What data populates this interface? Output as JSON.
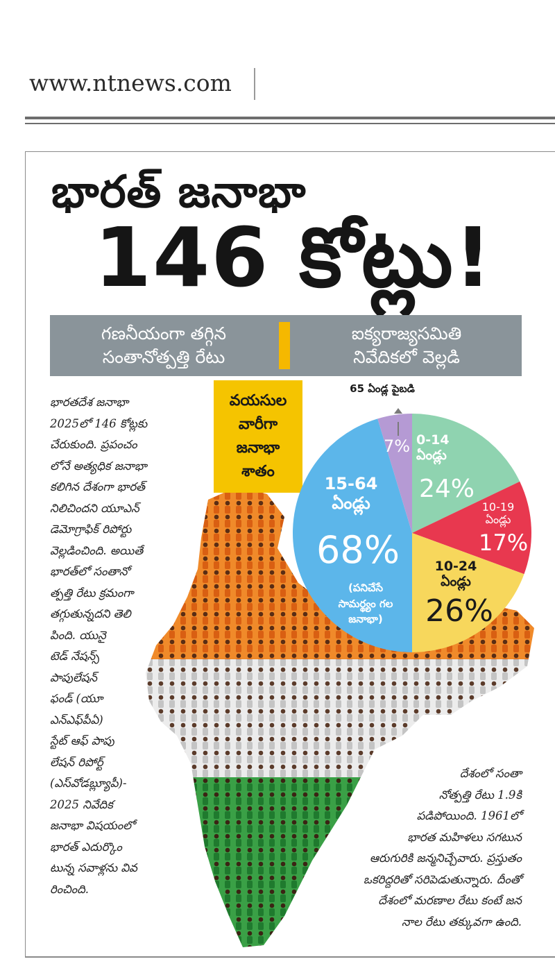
{
  "site": {
    "url": "www.ntnews.com"
  },
  "headline": {
    "line1": "భారత్ జనాభా",
    "line2": "146 కోట్లు!"
  },
  "band": {
    "left": [
      "గణనీయంగా తగ్గిన",
      "సంతానోత్పత్తి రేటు"
    ],
    "right": [
      "ఐక్యరాజ్యసమితి",
      "నివేదికలో వెల్లడి"
    ]
  },
  "lead_text": [
    "భారతదేశ జనాభా",
    "2025లో 146 కోట్లకు",
    "చేరుకుంది. ప్రపంచం",
    "లోనే అత్యధిక జనాభా",
    "కలిగిన దేశంగా భారత్",
    "నిలిచిందని యూఎన్",
    "డెమోగ్రాఫిక్ రిపోర్టు",
    "వెల్లడించింది. అయితే",
    "భారత్‌లో సంతానో",
    "త్పత్తి రేటు క్రమంగా",
    "తగ్గుతున్నదని తెలి",
    "పింది. యునై",
    "టెడ్ నేషన్స్",
    "పాపులేషన్",
    "ఫండ్ (యూ",
    "ఎన్ఎఫ్‌పీఏ)",
    "స్టేట్ ఆఫ్ పాపు",
    "లేషన్ రిపోర్ట్",
    "(ఎస్‌వోడబ్ల్యూపీ)-",
    "2025 నివేదిక",
    "జనాభా విషయంలో",
    "భారత్ ఎదుర్కొం",
    "టున్న సవాళ్లను వివ",
    "రించింది."
  ],
  "age_box": [
    "వయసుల",
    "వారీగా",
    "జనాభా",
    "శాతం"
  ],
  "chart_data": {
    "type": "pie",
    "title": "వయసుల వారీగా జనాభా శాతం",
    "slices": [
      {
        "label": "0-14",
        "unit": "ఏండ్లు",
        "value": 24,
        "display": "24%",
        "color": "#8fd3b0"
      },
      {
        "label": "10-19",
        "unit": "ఏండ్లు",
        "value": 17,
        "display": "17%",
        "color": "#e8384f"
      },
      {
        "label": "10-24",
        "unit": "ఏండ్లు",
        "value": 26,
        "display": "26%",
        "color": "#f7d75c"
      },
      {
        "label": "15-64",
        "unit": "ఏండ్లు",
        "value": 68,
        "display": "68%",
        "note": [
          "(పనిచేసే",
          "సామర్థ్యం గల",
          "జనాభా)"
        ],
        "color": "#5cb6ea"
      },
      {
        "label": "65 ఏండ్ల పైబడి",
        "value": 7,
        "display": "7%",
        "color": "#b59ad4"
      }
    ]
  },
  "colors": {
    "band": "#8a949a",
    "accent_yellow": "#f5c400",
    "saffron": "#e8731f",
    "green": "#2e8b3c"
  },
  "closing_text": [
    "దేశంలో సంతా",
    "నోత్పత్తి రేటు 1.9కి",
    "పడిపోయింది. 1961లో",
    "భారత మహిళలు సగటున",
    "ఆరుగురికి జన్మనిచ్చేవారు. ప్రస్తుతం",
    "ఒకరిద్దరితో సరిపెడుతున్నారు. దీంతో",
    "దేశంలో మరణాల రేటు కంటే జన",
    "నాల రేటు తక్కువగా ఉంది."
  ]
}
